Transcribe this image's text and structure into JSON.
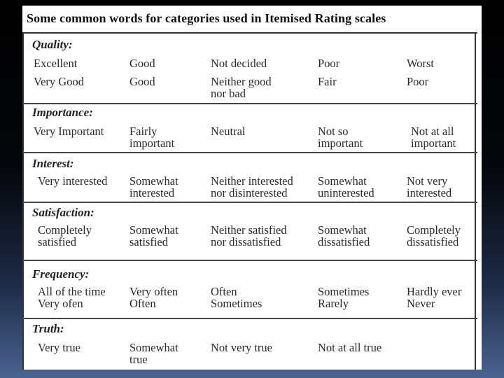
{
  "title": "Some common words for categories used in Itemised Rating scales",
  "sections": [
    {
      "name": "Quality:",
      "rows": [
        [
          "Excellent",
          "Good",
          "Not decided",
          "Poor",
          "Worst"
        ],
        [
          "Very Good",
          "Good",
          "Neither good\nnor bad",
          "Fair",
          "Poor"
        ]
      ]
    },
    {
      "name": "Importance:",
      "rows": [
        [
          "Very Important",
          "Fairly\nimportant",
          "Neutral",
          "Not so\nimportant",
          "Not at all\nimportant"
        ]
      ]
    },
    {
      "name": "Interest:",
      "rows": [
        [
          "Very interested",
          "Somewhat\ninterested",
          "Neither interested\nnor disinterested",
          "Somewhat\nuninterested",
          "Not very\ninterested"
        ]
      ]
    },
    {
      "name": "Satisfaction:",
      "rows": [
        [
          "Completely\nsatisfied",
          "Somewhat\nsatisfied",
          "Neither satisfied\nnor dissatisfied",
          "Somewhat\ndissatisfied",
          "Completely\ndissatisfied"
        ]
      ]
    },
    {
      "name": "Frequency:",
      "rows": [
        [
          "All of the time\nVery ofen",
          "Very often\nOften",
          "Often\nSometimes",
          "Sometimes\nRarely",
          "Hardly ever\nNever"
        ]
      ]
    },
    {
      "name": "Truth:",
      "rows": [
        [
          "Very true",
          "Somewhat\ntrue",
          "Not very true",
          "Not at all true",
          ""
        ]
      ]
    }
  ]
}
